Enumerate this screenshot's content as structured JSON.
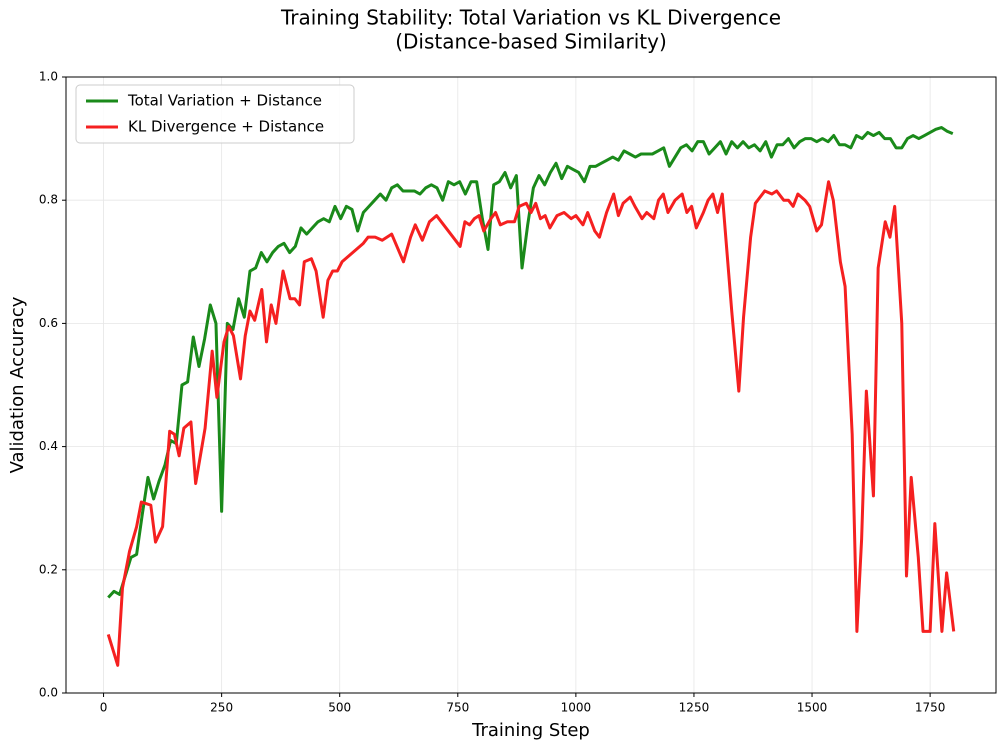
{
  "chart_data": {
    "type": "line",
    "title": [
      "Training Stability: Total Variation vs KL Divergence",
      "(Distance-based Similarity)"
    ],
    "x_label": "Training Step",
    "y_label": "Validation Accuracy",
    "xlim": [
      -79.5,
      1889.5
    ],
    "ylim": [
      0,
      1
    ],
    "xticks": [
      0,
      250,
      500,
      750,
      1000,
      1250,
      1500,
      1750
    ],
    "yticks": [
      {
        "value": 0,
        "label": "0.0"
      },
      0.2,
      0.4,
      0.6,
      0.8,
      {
        "value": 1,
        "label": "1.0"
      }
    ],
    "grid": true,
    "legend": "upper-left",
    "series": [
      {
        "name": "Total Variation + Distance",
        "color": "#1a8a1a",
        "x": [
          10,
          22,
          34,
          46,
          58,
          70,
          82,
          94,
          106,
          118,
          130,
          142,
          154,
          166,
          178,
          190,
          202,
          214,
          226,
          238,
          250,
          262,
          274,
          286,
          298,
          310,
          322,
          334,
          346,
          358,
          370,
          382,
          394,
          406,
          418,
          430,
          442,
          454,
          466,
          478,
          490,
          502,
          514,
          526,
          538,
          550,
          562,
          574,
          586,
          598,
          610,
          622,
          634,
          646,
          658,
          670,
          682,
          694,
          706,
          718,
          730,
          742,
          754,
          766,
          778,
          790,
          802,
          814,
          826,
          838,
          850,
          862,
          874,
          886,
          898,
          910,
          922,
          934,
          946,
          958,
          970,
          982,
          994,
          1006,
          1018,
          1030,
          1042,
          1054,
          1066,
          1078,
          1090,
          1102,
          1114,
          1126,
          1138,
          1150,
          1162,
          1174,
          1186,
          1198,
          1210,
          1222,
          1234,
          1246,
          1258,
          1270,
          1282,
          1294,
          1306,
          1318,
          1330,
          1342,
          1354,
          1366,
          1378,
          1390,
          1402,
          1414,
          1426,
          1438,
          1450,
          1462,
          1474,
          1486,
          1498,
          1510,
          1522,
          1534,
          1546,
          1558,
          1570,
          1582,
          1594,
          1606,
          1618,
          1630,
          1642,
          1654,
          1666,
          1678,
          1690,
          1702,
          1714,
          1726,
          1738,
          1750,
          1762,
          1774,
          1786,
          1798
        ],
        "values": [
          0.155,
          0.165,
          0.16,
          0.19,
          0.22,
          0.225,
          0.29,
          0.35,
          0.315,
          0.345,
          0.37,
          0.41,
          0.405,
          0.5,
          0.505,
          0.578,
          0.53,
          0.575,
          0.63,
          0.6,
          0.295,
          0.6,
          0.59,
          0.64,
          0.61,
          0.685,
          0.69,
          0.715,
          0.7,
          0.715,
          0.725,
          0.73,
          0.715,
          0.725,
          0.755,
          0.745,
          0.755,
          0.765,
          0.77,
          0.765,
          0.79,
          0.77,
          0.79,
          0.785,
          0.75,
          0.78,
          0.79,
          0.8,
          0.81,
          0.8,
          0.82,
          0.825,
          0.815,
          0.815,
          0.815,
          0.81,
          0.82,
          0.825,
          0.82,
          0.8,
          0.83,
          0.825,
          0.83,
          0.81,
          0.83,
          0.83,
          0.77,
          0.72,
          0.825,
          0.83,
          0.845,
          0.82,
          0.84,
          0.69,
          0.76,
          0.82,
          0.84,
          0.825,
          0.845,
          0.86,
          0.835,
          0.855,
          0.85,
          0.845,
          0.83,
          0.855,
          0.855,
          0.86,
          0.865,
          0.87,
          0.865,
          0.88,
          0.875,
          0.87,
          0.875,
          0.875,
          0.875,
          0.88,
          0.885,
          0.855,
          0.87,
          0.885,
          0.89,
          0.88,
          0.895,
          0.895,
          0.875,
          0.885,
          0.895,
          0.875,
          0.895,
          0.885,
          0.895,
          0.885,
          0.89,
          0.88,
          0.895,
          0.87,
          0.89,
          0.89,
          0.9,
          0.885,
          0.895,
          0.9,
          0.9,
          0.895,
          0.9,
          0.895,
          0.905,
          0.89,
          0.89,
          0.885,
          0.905,
          0.9,
          0.91,
          0.905,
          0.91,
          0.9,
          0.9,
          0.885,
          0.885,
          0.9,
          0.905,
          0.9,
          0.905,
          0.91,
          0.915,
          0.918,
          0.912,
          0.908
        ]
      },
      {
        "name": "KL Divergence + Distance",
        "color": "#f52020",
        "x": [
          10,
          30,
          40,
          55,
          70,
          80,
          100,
          110,
          125,
          140,
          150,
          160,
          170,
          185,
          195,
          215,
          230,
          240,
          255,
          265,
          275,
          290,
          300,
          310,
          320,
          335,
          345,
          355,
          365,
          380,
          395,
          405,
          415,
          425,
          440,
          450,
          465,
          475,
          485,
          495,
          505,
          520,
          535,
          550,
          560,
          575,
          590,
          610,
          635,
          650,
          660,
          675,
          690,
          705,
          735,
          755,
          765,
          775,
          785,
          795,
          805,
          820,
          830,
          840,
          855,
          870,
          880,
          895,
          905,
          915,
          925,
          935,
          945,
          960,
          975,
          990,
          1000,
          1015,
          1025,
          1040,
          1050,
          1065,
          1080,
          1090,
          1100,
          1115,
          1125,
          1140,
          1150,
          1165,
          1175,
          1185,
          1195,
          1210,
          1225,
          1235,
          1245,
          1255,
          1270,
          1280,
          1290,
          1300,
          1310,
          1330,
          1345,
          1355,
          1370,
          1380,
          1390,
          1400,
          1415,
          1425,
          1440,
          1450,
          1460,
          1470,
          1485,
          1495,
          1510,
          1520,
          1535,
          1545,
          1560,
          1570,
          1585,
          1595,
          1605,
          1615,
          1630,
          1640,
          1655,
          1665,
          1675,
          1690,
          1700,
          1710,
          1725,
          1735,
          1750,
          1760,
          1775,
          1785,
          1800
        ],
        "values": [
          0.095,
          0.045,
          0.17,
          0.23,
          0.27,
          0.31,
          0.305,
          0.245,
          0.27,
          0.425,
          0.42,
          0.385,
          0.43,
          0.44,
          0.34,
          0.43,
          0.555,
          0.48,
          0.57,
          0.595,
          0.58,
          0.51,
          0.58,
          0.62,
          0.605,
          0.655,
          0.57,
          0.63,
          0.6,
          0.685,
          0.64,
          0.64,
          0.63,
          0.7,
          0.705,
          0.685,
          0.61,
          0.67,
          0.685,
          0.685,
          0.7,
          0.71,
          0.72,
          0.73,
          0.74,
          0.74,
          0.735,
          0.745,
          0.7,
          0.74,
          0.76,
          0.735,
          0.765,
          0.775,
          0.745,
          0.725,
          0.765,
          0.76,
          0.77,
          0.775,
          0.75,
          0.77,
          0.78,
          0.76,
          0.765,
          0.765,
          0.79,
          0.795,
          0.78,
          0.795,
          0.77,
          0.775,
          0.755,
          0.775,
          0.78,
          0.77,
          0.775,
          0.76,
          0.78,
          0.75,
          0.74,
          0.78,
          0.81,
          0.775,
          0.795,
          0.805,
          0.79,
          0.77,
          0.78,
          0.77,
          0.8,
          0.81,
          0.78,
          0.8,
          0.81,
          0.78,
          0.79,
          0.755,
          0.78,
          0.8,
          0.81,
          0.78,
          0.81,
          0.62,
          0.49,
          0.61,
          0.74,
          0.795,
          0.805,
          0.815,
          0.81,
          0.815,
          0.8,
          0.8,
          0.79,
          0.81,
          0.8,
          0.79,
          0.75,
          0.76,
          0.83,
          0.8,
          0.7,
          0.66,
          0.42,
          0.1,
          0.25,
          0.49,
          0.32,
          0.69,
          0.765,
          0.74,
          0.79,
          0.6,
          0.19,
          0.35,
          0.22,
          0.1,
          0.1,
          0.275,
          0.1,
          0.195,
          0.1
        ]
      }
    ]
  }
}
